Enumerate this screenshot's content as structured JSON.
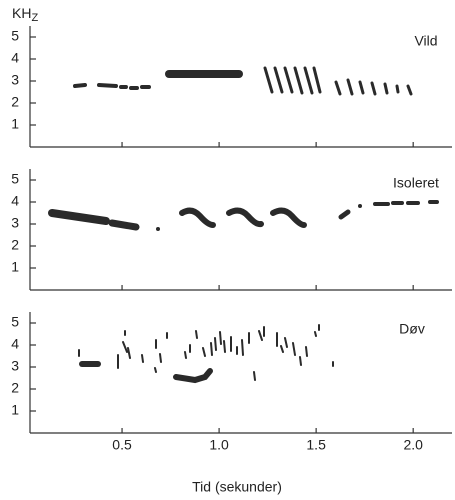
{
  "unit": {
    "main": "KH",
    "sub": "Z"
  },
  "x_label": "Tid (sekunder)",
  "xlim": [
    0,
    2.2
  ],
  "xticks": [
    0.5,
    {
      "value": 1,
      "label": "1.0"
    },
    1.5,
    {
      "value": 2,
      "label": "2.0"
    }
  ],
  "ylim": [
    0,
    5.5
  ],
  "yticks": [
    1,
    2,
    3,
    4,
    5
  ],
  "panels": [
    {
      "label": "Vild"
    },
    {
      "label": "Isoleret"
    },
    {
      "label": "Døv"
    }
  ]
}
